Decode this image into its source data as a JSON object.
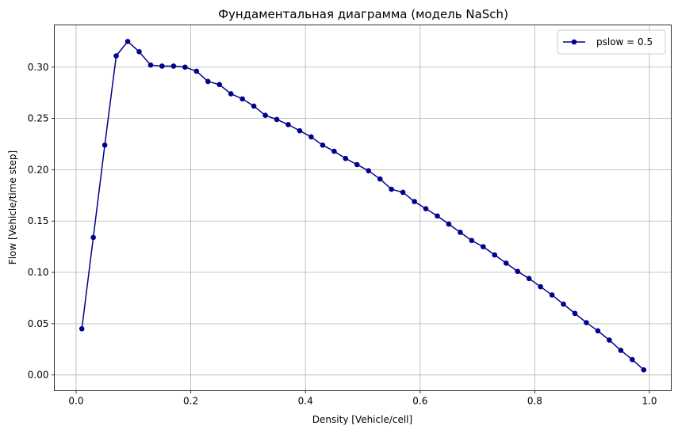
{
  "chart_data": {
    "type": "line",
    "title": "Фундаментальная диаграмма (модель NaSch)",
    "xlabel": "Density [Vehicle/cell]",
    "ylabel": "Flow [Vehicle/time step]",
    "xlim": [
      -0.038,
      1.038
    ],
    "ylim": [
      -0.0153,
      0.3411
    ],
    "xticks": [
      {
        "value": 0.0,
        "label": "0.0"
      },
      {
        "value": 0.2,
        "label": "0.2"
      },
      {
        "value": 0.4,
        "label": "0.4"
      },
      {
        "value": 0.6,
        "label": "0.6"
      },
      {
        "value": 0.8,
        "label": "0.8"
      },
      {
        "value": 1.0,
        "label": "1.0"
      }
    ],
    "yticks": [
      {
        "value": 0.0,
        "label": "0.00"
      },
      {
        "value": 0.05,
        "label": "0.05"
      },
      {
        "value": 0.1,
        "label": "0.10"
      },
      {
        "value": 0.15,
        "label": "0.15"
      },
      {
        "value": 0.2,
        "label": "0.20"
      },
      {
        "value": 0.25,
        "label": "0.25"
      },
      {
        "value": 0.3,
        "label": "0.30"
      }
    ],
    "grid": true,
    "legend": "top-right",
    "series": [
      {
        "name": "pslow = 0.5",
        "color": "#00008b",
        "marker": "circle",
        "x": [
          0.01,
          0.03,
          0.05,
          0.07,
          0.09,
          0.11,
          0.13,
          0.15,
          0.17,
          0.19,
          0.21,
          0.23,
          0.25,
          0.27,
          0.29,
          0.31,
          0.33,
          0.35,
          0.37,
          0.39,
          0.41,
          0.43,
          0.45,
          0.47,
          0.49,
          0.51,
          0.53,
          0.55,
          0.57,
          0.59,
          0.61,
          0.63,
          0.65,
          0.67,
          0.69,
          0.71,
          0.73,
          0.75,
          0.77,
          0.79,
          0.81,
          0.83,
          0.85,
          0.87,
          0.89,
          0.91,
          0.93,
          0.95,
          0.97,
          0.99
        ],
        "y": [
          0.045,
          0.134,
          0.224,
          0.311,
          0.325,
          0.315,
          0.302,
          0.301,
          0.301,
          0.3,
          0.296,
          0.286,
          0.283,
          0.274,
          0.269,
          0.262,
          0.253,
          0.249,
          0.244,
          0.238,
          0.232,
          0.224,
          0.218,
          0.211,
          0.205,
          0.199,
          0.191,
          0.181,
          0.178,
          0.169,
          0.162,
          0.155,
          0.147,
          0.139,
          0.131,
          0.125,
          0.117,
          0.109,
          0.101,
          0.094,
          0.086,
          0.078,
          0.069,
          0.06,
          0.051,
          0.043,
          0.034,
          0.024,
          0.015,
          0.005
        ]
      }
    ]
  }
}
